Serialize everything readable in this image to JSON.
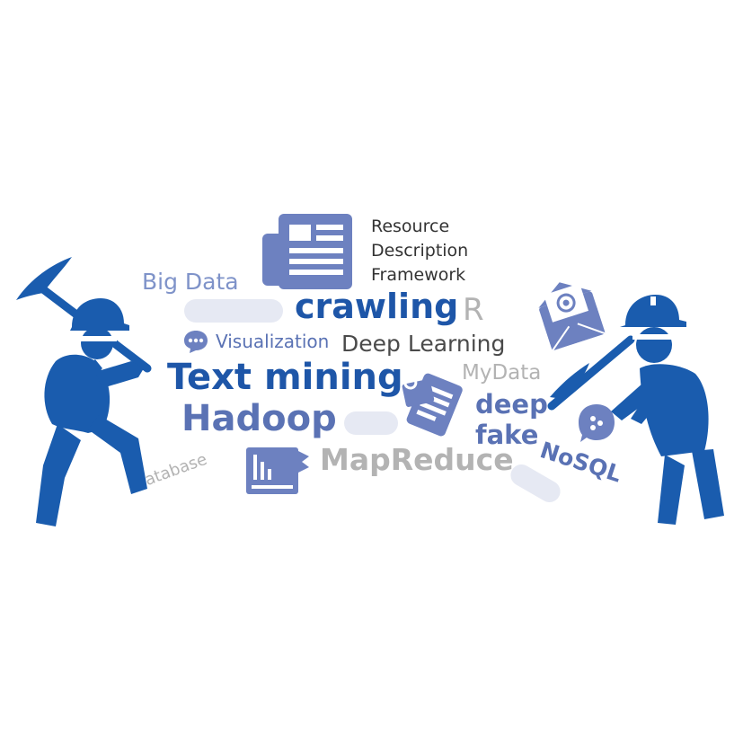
{
  "words": {
    "rdf_line1": "Resource",
    "rdf_line2": "Description",
    "rdf_line3": "Framework",
    "big_data": "Big Data",
    "crawling": "crawling",
    "r": "R",
    "visualization": "Visualization",
    "deep_learning": "Deep Learning",
    "text_mining": "Text mining",
    "mydata": "MyData",
    "hadoop": "Hadoop",
    "deep": "deep",
    "fake": "fake",
    "mapreduce": "MapReduce",
    "nosql": "NoSQL",
    "database": "Database"
  },
  "colors": {
    "dark_blue": "#1e56a8",
    "figure_blue": "#1a5cae",
    "medium_blue": "#5a72b4",
    "light_blue": "#7f93c9",
    "icon_blue": "#6d81c0",
    "dark_gray": "#4a4a4a",
    "light_gray": "#b3b3b3",
    "pill": "#e6e9f3"
  },
  "icons": [
    "newspaper-icon",
    "chat-bubble-icon",
    "email-icon",
    "clipboard-icon",
    "book-icon",
    "chat-dots-icon"
  ]
}
